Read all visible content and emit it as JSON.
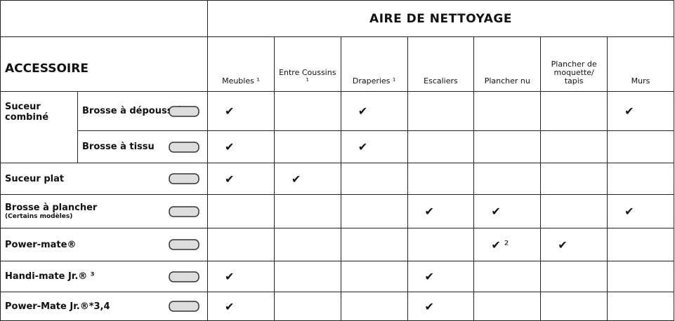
{
  "header": {
    "title": "AIRE DE NETTOYAGE",
    "accessory": "ACCESSOIRE",
    "columns": [
      "Meubles ¹",
      "Entre Coussins ¹",
      "Draperies ¹",
      "Escaliers",
      "Plancher nu",
      "Plancher de moquette/ tapis",
      "Murs"
    ]
  },
  "rows": [
    {
      "group": "Suceur combiné",
      "label": "Brosse à dépoussiérer",
      "cells": [
        "✔",
        null,
        "✔",
        null,
        null,
        null,
        "✔"
      ]
    },
    {
      "label": "Brosse à tissu",
      "cells": [
        "✔",
        null,
        "✔",
        null,
        null,
        null,
        null
      ]
    },
    {
      "label": "Suceur plat",
      "cells": [
        "✔",
        "✔",
        null,
        null,
        null,
        null,
        null
      ]
    },
    {
      "label": "Brosse à plancher",
      "note": "(Certains modèles)",
      "cells": [
        null,
        null,
        null,
        "✔",
        "✔",
        null,
        "✔"
      ]
    },
    {
      "label": "Power-mate®",
      "cells": [
        null,
        null,
        null,
        null,
        "✔ ²",
        "✔",
        null
      ]
    },
    {
      "label": "Handi-mate Jr.® ³",
      "cells": [
        "✔",
        null,
        null,
        "✔",
        null,
        null,
        null
      ]
    },
    {
      "label": "Power-Mate Jr.®*3,4",
      "cells": [
        "✔",
        null,
        null,
        "✔",
        null,
        null,
        null
      ]
    }
  ]
}
